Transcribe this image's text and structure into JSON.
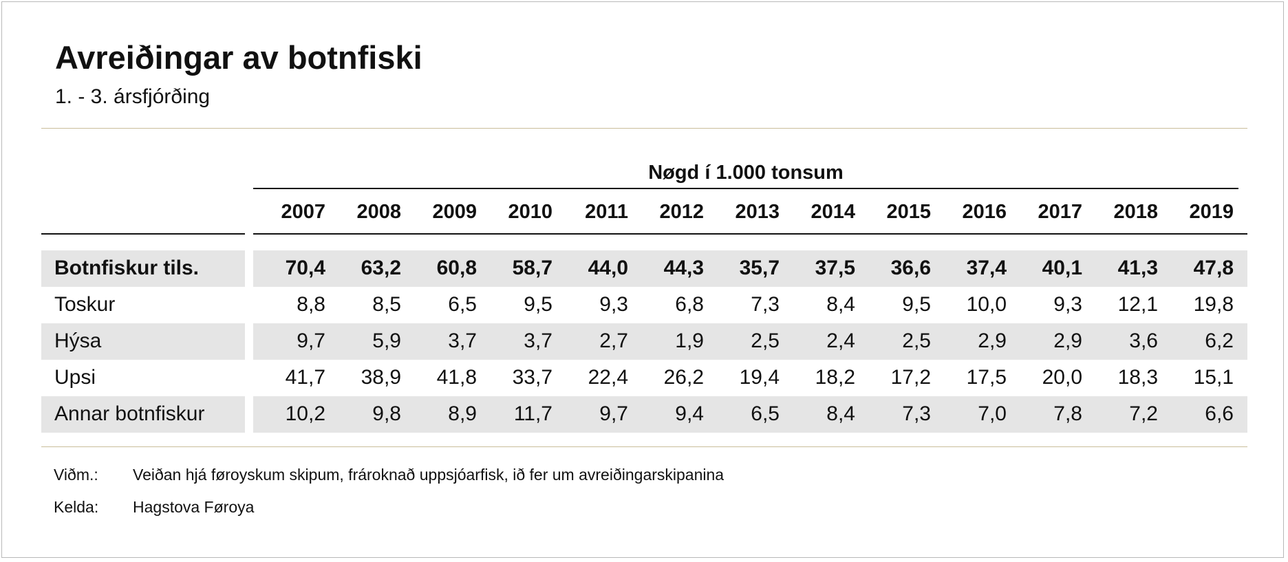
{
  "chart_data": {
    "type": "table",
    "title": "Avreiðingar av botnfiski",
    "subtitle": "1. - 3. ársfjórðing",
    "unit_header": "Nøgd í 1.000 tonsum",
    "columns": [
      "2007",
      "2008",
      "2009",
      "2010",
      "2011",
      "2012",
      "2013",
      "2014",
      "2015",
      "2016",
      "2017",
      "2018",
      "2019"
    ],
    "rows": [
      {
        "label": "Botnfiskur tils.",
        "values": [
          "70,4",
          "63,2",
          "60,8",
          "58,7",
          "44,0",
          "44,3",
          "35,7",
          "37,5",
          "36,6",
          "37,4",
          "40,1",
          "41,3",
          "47,8"
        ],
        "bold": true,
        "shaded": true
      },
      {
        "label": "Toskur",
        "values": [
          "8,8",
          "8,5",
          "6,5",
          "9,5",
          "9,3",
          "6,8",
          "7,3",
          "8,4",
          "9,5",
          "10,0",
          "9,3",
          "12,1",
          "19,8"
        ],
        "bold": false,
        "shaded": false
      },
      {
        "label": "Hýsa",
        "values": [
          "9,7",
          "5,9",
          "3,7",
          "3,7",
          "2,7",
          "1,9",
          "2,5",
          "2,4",
          "2,5",
          "2,9",
          "2,9",
          "3,6",
          "6,2"
        ],
        "bold": false,
        "shaded": true
      },
      {
        "label": "Upsi",
        "values": [
          "41,7",
          "38,9",
          "41,8",
          "33,7",
          "22,4",
          "26,2",
          "19,4",
          "18,2",
          "17,2",
          "17,5",
          "20,0",
          "18,3",
          "15,1"
        ],
        "bold": false,
        "shaded": false
      },
      {
        "label": "Annar botnfiskur",
        "values": [
          "10,2",
          "9,8",
          "8,9",
          "11,7",
          "9,7",
          "9,4",
          "6,5",
          "8,4",
          "7,3",
          "7,0",
          "7,8",
          "7,2",
          "6,6"
        ],
        "bold": false,
        "shaded": true
      }
    ]
  },
  "notes": [
    {
      "key": "Viðm.:",
      "text": "Veiðan hjá føroyskum skipum, frároknað uppsjóarfisk, ið fer um avreiðingarskipanina"
    },
    {
      "key": "Kelda:",
      "text": "Hagstova Føroya"
    }
  ],
  "colors": {
    "row_shade": "#e5e5e5",
    "rule_gold": "#c9bd9a",
    "rule_black": "#111111"
  }
}
